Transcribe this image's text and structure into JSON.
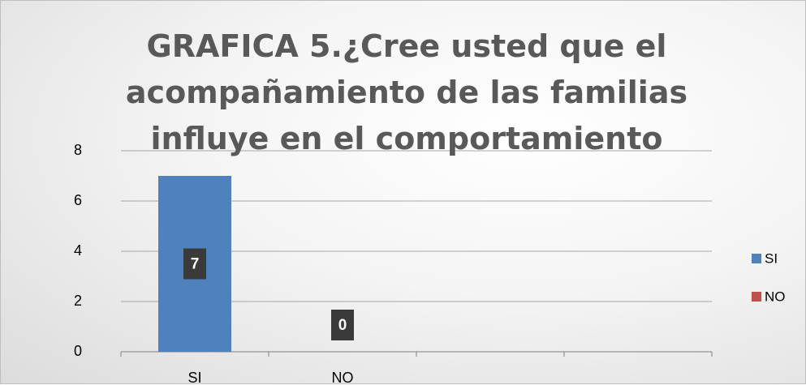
{
  "chart_data": {
    "type": "bar",
    "title": "GRAFICA 5.¿Cree usted que el acompañamiento de las familias influye en el comportamiento",
    "categories": [
      "SI",
      "NO",
      null,
      null
    ],
    "series": [
      {
        "name": "SI",
        "color": "#4f81bd",
        "values": [
          7,
          null,
          null,
          null
        ]
      },
      {
        "name": "NO",
        "color": "#c0504d",
        "values": [
          null,
          0,
          null,
          null
        ]
      }
    ],
    "ylim": [
      0,
      8
    ],
    "yticks": [
      0,
      2,
      4,
      6,
      8
    ],
    "grid": true,
    "legend": "right"
  }
}
